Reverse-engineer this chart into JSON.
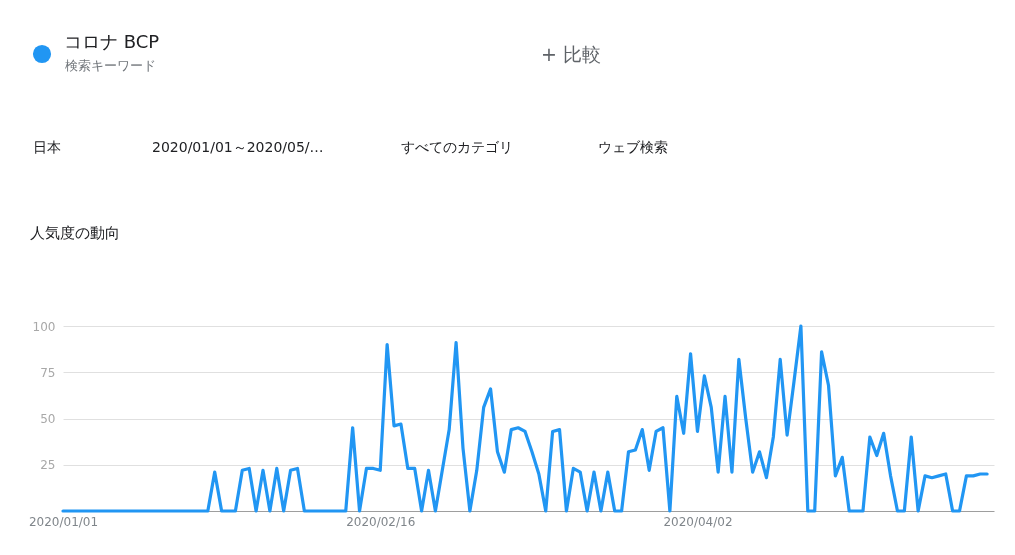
{
  "chart_data": {
    "type": "line",
    "title": "人気度の動向",
    "annotations": [
      "検索キーワード",
      "+ 比較",
      "日本",
      "2020/01/01～2020/05/…",
      "すべてのカテゴリ",
      "ウェブ検索"
    ],
    "x": [
      "2020-01-01",
      "2020-01-02",
      "2020-01-03",
      "2020-01-04",
      "2020-01-05",
      "2020-01-06",
      "2020-01-07",
      "2020-01-08",
      "2020-01-09",
      "2020-01-10",
      "2020-01-11",
      "2020-01-12",
      "2020-01-13",
      "2020-01-14",
      "2020-01-15",
      "2020-01-16",
      "2020-01-17",
      "2020-01-18",
      "2020-01-19",
      "2020-01-20",
      "2020-01-21",
      "2020-01-22",
      "2020-01-23",
      "2020-01-24",
      "2020-01-25",
      "2020-01-26",
      "2020-01-27",
      "2020-01-28",
      "2020-01-29",
      "2020-01-30",
      "2020-01-31",
      "2020-02-01",
      "2020-02-02",
      "2020-02-03",
      "2020-02-04",
      "2020-02-05",
      "2020-02-06",
      "2020-02-07",
      "2020-02-08",
      "2020-02-09",
      "2020-02-10",
      "2020-02-11",
      "2020-02-12",
      "2020-02-13",
      "2020-02-14",
      "2020-02-15",
      "2020-02-16",
      "2020-02-17",
      "2020-02-18",
      "2020-02-19",
      "2020-02-20",
      "2020-02-21",
      "2020-02-22",
      "2020-02-23",
      "2020-02-24",
      "2020-02-25",
      "2020-02-26",
      "2020-02-27",
      "2020-02-28",
      "2020-02-29",
      "2020-03-01",
      "2020-03-02",
      "2020-03-03",
      "2020-03-04",
      "2020-03-05",
      "2020-03-06",
      "2020-03-07",
      "2020-03-08",
      "2020-03-09",
      "2020-03-10",
      "2020-03-11",
      "2020-03-12",
      "2020-03-13",
      "2020-03-14",
      "2020-03-15",
      "2020-03-16",
      "2020-03-17",
      "2020-03-18",
      "2020-03-19",
      "2020-03-20",
      "2020-03-21",
      "2020-03-22",
      "2020-03-23",
      "2020-03-24",
      "2020-03-25",
      "2020-03-26",
      "2020-03-27",
      "2020-03-28",
      "2020-03-29",
      "2020-03-30",
      "2020-03-31",
      "2020-04-01",
      "2020-04-02",
      "2020-04-03",
      "2020-04-04",
      "2020-04-05",
      "2020-04-06",
      "2020-04-07",
      "2020-04-08",
      "2020-04-09",
      "2020-04-10",
      "2020-04-11",
      "2020-04-12",
      "2020-04-13",
      "2020-04-14",
      "2020-04-15",
      "2020-04-16",
      "2020-04-17",
      "2020-04-18",
      "2020-04-19",
      "2020-04-20",
      "2020-04-21",
      "2020-04-22",
      "2020-04-23",
      "2020-04-24",
      "2020-04-25",
      "2020-04-26",
      "2020-04-27",
      "2020-04-28",
      "2020-04-29",
      "2020-04-30",
      "2020-05-01",
      "2020-05-02",
      "2020-05-03",
      "2020-05-04",
      "2020-05-05",
      "2020-05-06",
      "2020-05-07",
      "2020-05-08",
      "2020-05-09",
      "2020-05-10",
      "2020-05-11",
      "2020-05-12",
      "2020-05-13",
      "2020-05-14"
    ],
    "series": [
      {
        "name": "コロナ BCP",
        "color": "#2196f3",
        "values": [
          0,
          0,
          0,
          0,
          0,
          0,
          0,
          0,
          0,
          0,
          0,
          0,
          0,
          0,
          0,
          0,
          0,
          0,
          0,
          0,
          0,
          0,
          21,
          0,
          0,
          0,
          22,
          23,
          0,
          22,
          0,
          23,
          0,
          22,
          23,
          0,
          0,
          0,
          0,
          0,
          0,
          0,
          45,
          0,
          23,
          23,
          22,
          90,
          46,
          47,
          23,
          23,
          0,
          22,
          0,
          22,
          44,
          91,
          34,
          0,
          22,
          56,
          66,
          32,
          21,
          44,
          45,
          43,
          32,
          20,
          0,
          43,
          44,
          0,
          23,
          21,
          0,
          21,
          0,
          21,
          0,
          0,
          32,
          33,
          44,
          22,
          43,
          45,
          0,
          62,
          42,
          85,
          43,
          73,
          56,
          21,
          62,
          21,
          82,
          50,
          21,
          32,
          18,
          40,
          82,
          41,
          70,
          100,
          0,
          0,
          86,
          68,
          19,
          29,
          0,
          0,
          0,
          40,
          30,
          42,
          19,
          0,
          0,
          40,
          0,
          19,
          18,
          19,
          20,
          0,
          0,
          19,
          19,
          20,
          20
        ]
      }
    ],
    "xlim": [
      "2020-01-01",
      "2020-05-15"
    ],
    "ylim": [
      0,
      100
    ],
    "xticks": [
      {
        "value": "2020-01-01",
        "label": "2020/01/01"
      },
      {
        "value": "2020-02-16",
        "label": "2020/02/16"
      },
      {
        "value": "2020-04-02",
        "label": "2020/04/02"
      }
    ],
    "yticks": [
      25,
      50,
      75,
      100
    ],
    "grid": "y",
    "legend": "top left",
    "marker": "none",
    "line_style": "solid"
  }
}
